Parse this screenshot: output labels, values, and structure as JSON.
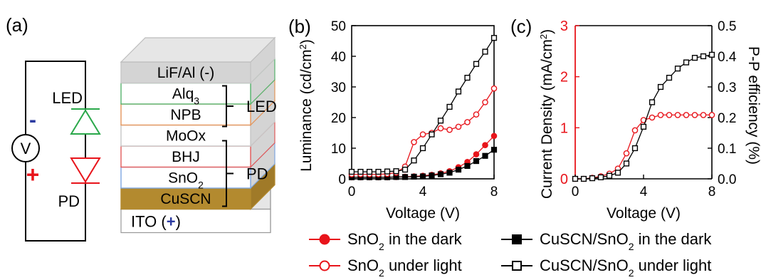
{
  "panels": {
    "a": "(a)",
    "b": "(b)",
    "c": "(c)"
  },
  "circuit": {
    "voltmeter": "V",
    "minus": "-",
    "plus": "+",
    "led": "LED",
    "pd": "PD"
  },
  "stack": {
    "layers": [
      {
        "label": "LiF/Al (-)",
        "sub": "",
        "tail": "",
        "fill": "#d4d4d4",
        "edge": "#c6c6c6"
      },
      {
        "label": "Alq",
        "sub": "3",
        "tail": "",
        "fill": "#ffffff",
        "edge": "#55b26c"
      },
      {
        "label": "NPB",
        "sub": "",
        "tail": "",
        "fill": "#ffffff",
        "edge": "#e3955b"
      },
      {
        "label": "MoOx",
        "sub": "",
        "tail": "",
        "fill": "#ffffff",
        "edge": "#c6c6c6"
      },
      {
        "label": "BHJ",
        "sub": "",
        "tail": "",
        "fill": "#ffffff",
        "edge": "#e05a5a"
      },
      {
        "label": "SnO",
        "sub": "2",
        "tail": "",
        "fill": "#ffffff",
        "edge": "#7ea6e0"
      },
      {
        "label": "CuSCN",
        "sub": "",
        "tail": "",
        "fill": "#b38a2f",
        "edge": "#b38a2f"
      }
    ],
    "ito_label": "ITO (",
    "ito_plus": "+",
    "ito_close": ")",
    "bracket_led": "LED",
    "bracket_pd": "PD"
  },
  "legend": [
    {
      "pre": "SnO",
      "sub": "2",
      "post": " in the dark",
      "color": "#e8141b",
      "marker": "circle",
      "filled": true
    },
    {
      "pre": "CuSCN/SnO",
      "sub": "2",
      "post": " in the dark",
      "color": "#000000",
      "marker": "square",
      "filled": true
    },
    {
      "pre": "SnO",
      "sub": "2",
      "post": " under light",
      "color": "#e8141b",
      "marker": "circle",
      "filled": false
    },
    {
      "pre": "CuSCN/SnO",
      "sub": "2",
      "post": " under light",
      "color": "#000000",
      "marker": "square",
      "filled": false
    }
  ],
  "chart_data": [
    {
      "panel": "b",
      "type": "line",
      "xlabel": "Voltage (V)",
      "ylabel": "Luminance (cd/cm",
      "ylabel_sup": "2",
      "ylabel_close": ")",
      "xlim": [
        0,
        8
      ],
      "ylim": [
        0,
        50
      ],
      "xticks": [
        0,
        4,
        8
      ],
      "yticks": [
        0,
        10,
        20,
        30,
        40,
        50
      ],
      "x": [
        0,
        0.5,
        1,
        1.5,
        2,
        2.5,
        3,
        3.5,
        4,
        4.5,
        5,
        5.5,
        6,
        6.5,
        7,
        7.5,
        8
      ],
      "series": [
        {
          "name": "SnO2 in the dark",
          "color": "#e8141b",
          "marker": "circle",
          "filled": true,
          "values": [
            0.5,
            0.5,
            0.5,
            0.5,
            0.5,
            0.6,
            0.7,
            0.8,
            1.0,
            1.3,
            1.8,
            2.5,
            3.8,
            5.5,
            8.0,
            11.0,
            14.0
          ]
        },
        {
          "name": "CuSCN/SnO2 in the dark",
          "color": "#000000",
          "marker": "square",
          "filled": true,
          "values": [
            0.5,
            0.5,
            0.5,
            0.5,
            0.5,
            0.6,
            0.6,
            0.7,
            0.8,
            1.1,
            1.5,
            2.0,
            3.0,
            4.2,
            5.8,
            7.5,
            9.5
          ]
        },
        {
          "name": "SnO2 under light",
          "color": "#e8141b",
          "marker": "circle",
          "filled": false,
          "values": [
            1.5,
            1.5,
            1.5,
            1.5,
            1.6,
            2.0,
            4.0,
            12.0,
            14.5,
            15.0,
            16.5,
            16.0,
            17.0,
            18.5,
            21.0,
            25.0,
            29.5
          ]
        },
        {
          "name": "CuSCN/SnO2 under light",
          "color": "#000000",
          "marker": "square",
          "filled": false,
          "values": [
            2.3,
            2.3,
            2.3,
            2.3,
            2.4,
            2.5,
            3.0,
            6.0,
            10.0,
            14.5,
            19.0,
            23.5,
            28.5,
            33.0,
            37.5,
            41.5,
            46.0
          ]
        }
      ]
    },
    {
      "panel": "c",
      "type": "line",
      "xlabel": "Voltage (V)",
      "ylabel": "Current Density (mA/cm",
      "ylabel_sup": "2",
      "ylabel_close": ")",
      "ylabel_right": "P-P efficiency (%)",
      "left_axis_color": "#e8141b",
      "xlim": [
        0,
        8
      ],
      "ylim": [
        0,
        3
      ],
      "ylim_right": [
        0,
        0.5
      ],
      "xticks": [
        0,
        4,
        8
      ],
      "yticks": [
        0,
        1,
        2,
        3
      ],
      "yticks_right": [
        "0.0",
        "0.1",
        "0.2",
        "0.3",
        "0.4",
        "0.5"
      ],
      "x": [
        0,
        0.5,
        1,
        1.5,
        2,
        2.5,
        3,
        3.5,
        4,
        4.5,
        5,
        5.5,
        6,
        6.5,
        7,
        7.5,
        8
      ],
      "series": [
        {
          "name": "Current Density",
          "axis": "left",
          "color": "#e8141b",
          "marker": "circle",
          "filled": false,
          "values": [
            0,
            0,
            0.02,
            0.05,
            0.1,
            0.2,
            0.5,
            0.95,
            1.15,
            1.2,
            1.25,
            1.25,
            1.25,
            1.25,
            1.25,
            1.25,
            1.25
          ]
        },
        {
          "name": "P-P efficiency",
          "axis": "right",
          "color": "#000000",
          "marker": "square",
          "filled": false,
          "values": [
            0,
            0,
            0.002,
            0.005,
            0.01,
            0.02,
            0.05,
            0.1,
            0.17,
            0.25,
            0.3,
            0.33,
            0.36,
            0.38,
            0.395,
            0.4,
            0.405
          ]
        }
      ]
    }
  ]
}
